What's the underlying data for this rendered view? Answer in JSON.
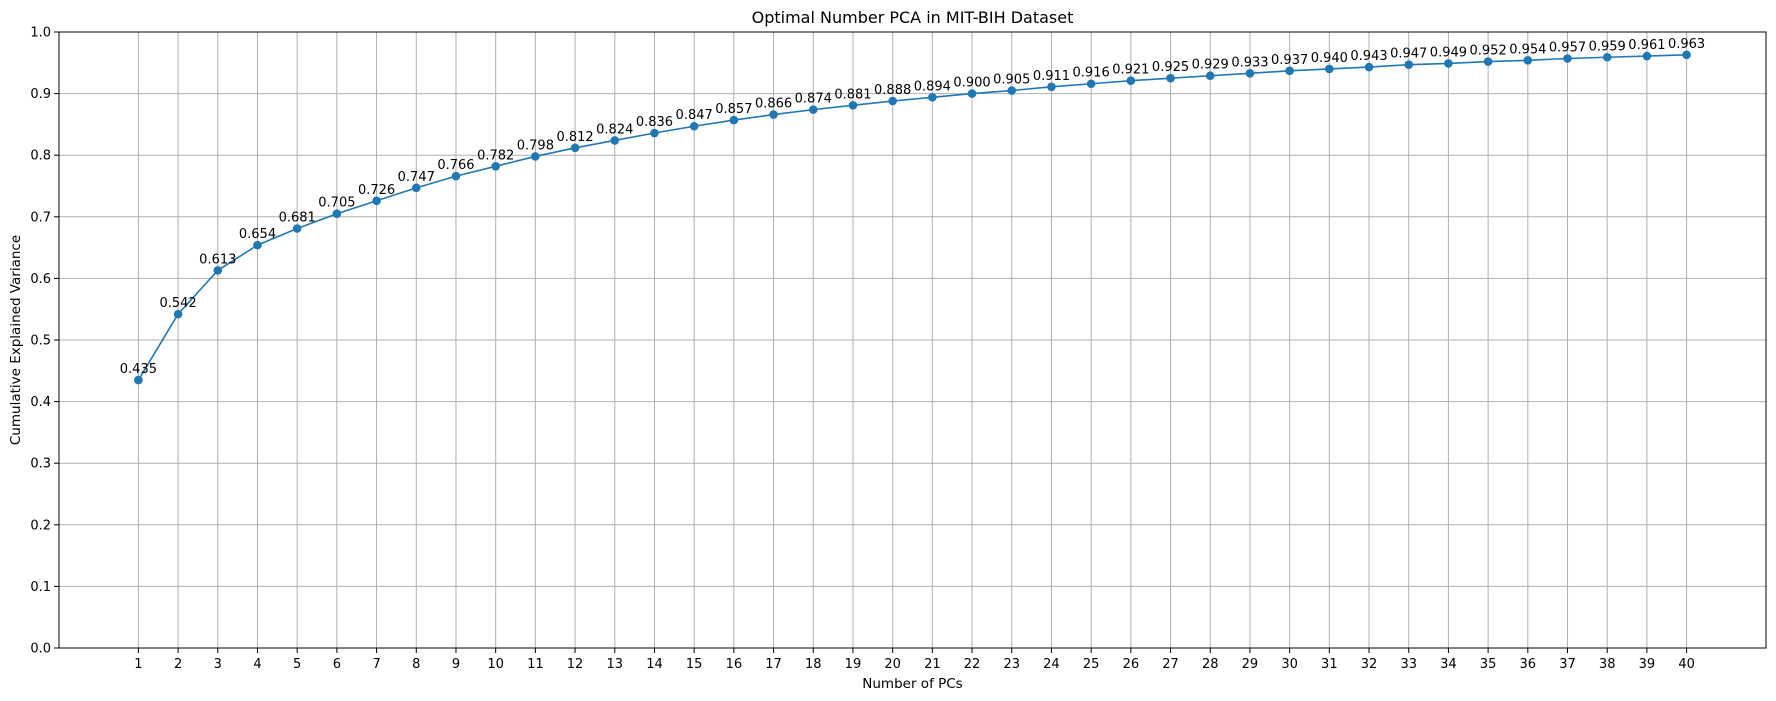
{
  "chart_data": {
    "type": "line",
    "title": "Optimal Number PCA in MIT-BIH Dataset",
    "xlabel": "Number of PCs",
    "ylabel": "Cumulative Explained Variance",
    "x": [
      1,
      2,
      3,
      4,
      5,
      6,
      7,
      8,
      9,
      10,
      11,
      12,
      13,
      14,
      15,
      16,
      17,
      18,
      19,
      20,
      21,
      22,
      23,
      24,
      25,
      26,
      27,
      28,
      29,
      30,
      31,
      32,
      33,
      34,
      35,
      36,
      37,
      38,
      39,
      40
    ],
    "series": [
      {
        "values": [
          0.435,
          0.542,
          0.613,
          0.654,
          0.681,
          0.705,
          0.726,
          0.747,
          0.766,
          0.782,
          0.798,
          0.812,
          0.824,
          0.836,
          0.847,
          0.857,
          0.866,
          0.874,
          0.881,
          0.888,
          0.894,
          0.9,
          0.905,
          0.911,
          0.916,
          0.921,
          0.925,
          0.929,
          0.933,
          0.937,
          0.94,
          0.943,
          0.947,
          0.949,
          0.952,
          0.954,
          0.957,
          0.959,
          0.961,
          0.963
        ],
        "labels": [
          "0.435",
          "0.542",
          "0.613",
          "0.654",
          "0.681",
          "0.705",
          "0.726",
          "0.747",
          "0.766",
          "0.782",
          "0.798",
          "0.812",
          "0.824",
          "0.836",
          "0.847",
          "0.857",
          "0.866",
          "0.874",
          "0.881",
          "0.888",
          "0.894",
          "0.900",
          "0.905",
          "0.911",
          "0.916",
          "0.921",
          "0.925",
          "0.929",
          "0.933",
          "0.937",
          "0.940",
          "0.943",
          "0.947",
          "0.949",
          "0.952",
          "0.954",
          "0.957",
          "0.959",
          "0.961",
          "0.963"
        ],
        "color": "#1f77b4"
      }
    ],
    "xlim": [
      -1,
      42
    ],
    "ylim": [
      0.0,
      1.0
    ],
    "yticks": [
      "0.0",
      "0.1",
      "0.2",
      "0.3",
      "0.4",
      "0.5",
      "0.6",
      "0.7",
      "0.8",
      "0.9",
      "1.0"
    ],
    "grid": true,
    "marker": "circle"
  }
}
